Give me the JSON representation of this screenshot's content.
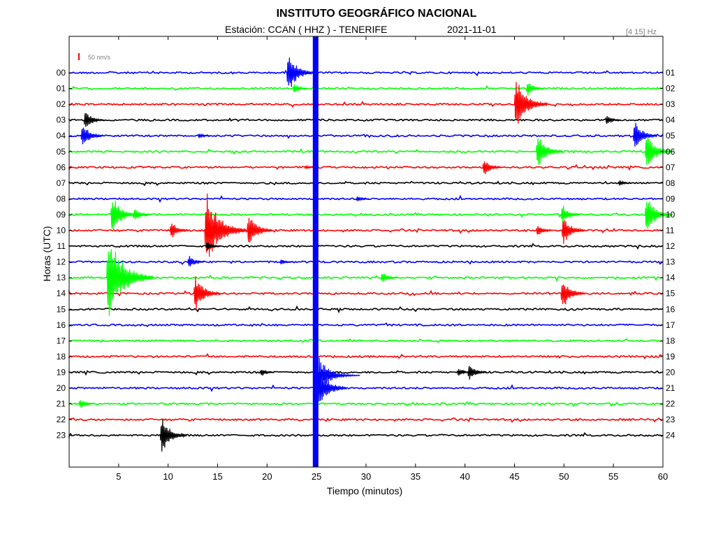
{
  "header": {
    "title": "INSTITUTO GEOGRÁFICO NACIONAL",
    "station_line": "Estación:  CCAN ( HHZ ) - TENERIFE",
    "date": "2021-11-01",
    "filter": "[4 15] Hz"
  },
  "chart_data": {
    "type": "line",
    "title": "INSTITUTO GEOGRÁFICO NACIONAL",
    "subtitle": "Estación:  CCAN ( HHZ ) - TENERIFE",
    "xlabel": "Tiempo (minutos)",
    "ylabel": "Horas (UTC)",
    "xlim": [
      0,
      60
    ],
    "x_ticks": [
      5,
      10,
      15,
      20,
      25,
      30,
      35,
      40,
      45,
      50,
      55,
      60
    ],
    "left_labels": [
      "00",
      "01",
      "02",
      "03",
      "04",
      "05",
      "06",
      "07",
      "08",
      "09",
      "10",
      "11",
      "12",
      "13",
      "14",
      "15",
      "16",
      "17",
      "18",
      "19",
      "20",
      "21",
      "22",
      "23"
    ],
    "right_labels": [
      "01",
      "02",
      "03",
      "04",
      "05",
      "06",
      "07",
      "08",
      "09",
      "10",
      "11",
      "12",
      "13",
      "14",
      "15",
      "16",
      "17",
      "18",
      "19",
      "20",
      "21",
      "22",
      "23",
      "24"
    ],
    "trace_colors": [
      "#0000ff",
      "#00ff00",
      "#ff0000",
      "#000000"
    ],
    "scale_label": "50 nm/s",
    "events": [
      {
        "hour": 0,
        "minute": 22.0,
        "amplitude": 1.6
      },
      {
        "hour": 1,
        "minute": 22.6,
        "amplitude": 0.5
      },
      {
        "hour": 1,
        "minute": 46.2,
        "amplitude": 0.7
      },
      {
        "hour": 2,
        "minute": 45.0,
        "amplitude": 2.1
      },
      {
        "hour": 3,
        "minute": 1.5,
        "amplitude": 0.9
      },
      {
        "hour": 3,
        "minute": 54.2,
        "amplitude": 0.5
      },
      {
        "hour": 4,
        "minute": 1.2,
        "amplitude": 1.1
      },
      {
        "hour": 4,
        "minute": 13.0,
        "amplitude": 0.3
      },
      {
        "hour": 4,
        "minute": 57.0,
        "amplitude": 1.3
      },
      {
        "hour": 5,
        "minute": 47.2,
        "amplitude": 1.5
      },
      {
        "hour": 5,
        "minute": 58.2,
        "amplitude": 1.6
      },
      {
        "hour": 6,
        "minute": 41.8,
        "amplitude": 0.8
      },
      {
        "hour": 6,
        "minute": 23.8,
        "amplitude": 0.2
      },
      {
        "hour": 7,
        "minute": 55.5,
        "amplitude": 0.3
      },
      {
        "hour": 8,
        "minute": 29.0,
        "amplitude": 0.3
      },
      {
        "hour": 9,
        "minute": 4.2,
        "amplitude": 1.6
      },
      {
        "hour": 9,
        "minute": 6.5,
        "amplitude": 0.7
      },
      {
        "hour": 9,
        "minute": 58.2,
        "amplitude": 1.6
      },
      {
        "hour": 9,
        "minute": 49.7,
        "amplitude": 0.9
      },
      {
        "hour": 10,
        "minute": 10.2,
        "amplitude": 0.8
      },
      {
        "hour": 10,
        "minute": 13.7,
        "amplitude": 2.9
      },
      {
        "hour": 10,
        "minute": 18.0,
        "amplitude": 1.4
      },
      {
        "hour": 10,
        "minute": 49.8,
        "amplitude": 1.2
      },
      {
        "hour": 10,
        "minute": 47.2,
        "amplitude": 0.6
      },
      {
        "hour": 11,
        "minute": 13.8,
        "amplitude": 0.5
      },
      {
        "hour": 12,
        "minute": 12.0,
        "amplitude": 0.6
      },
      {
        "hour": 12,
        "minute": 21.3,
        "amplitude": 0.3
      },
      {
        "hour": 13,
        "minute": 3.8,
        "amplitude": 3.3
      },
      {
        "hour": 13,
        "minute": 31.5,
        "amplitude": 0.6
      },
      {
        "hour": 14,
        "minute": 12.6,
        "amplitude": 1.5
      },
      {
        "hour": 14,
        "minute": 49.7,
        "amplitude": 1.3
      },
      {
        "hour": 19,
        "minute": 19.3,
        "amplitude": 0.4
      },
      {
        "hour": 19,
        "minute": 40.3,
        "amplitude": 0.8
      },
      {
        "hour": 19,
        "minute": 39.2,
        "amplitude": 0.4
      },
      {
        "hour": 20,
        "minute": 24.8,
        "amplitude": 2.0
      },
      {
        "hour": 21,
        "minute": 1.0,
        "amplitude": 0.5
      },
      {
        "hour": 23,
        "minute": 9.2,
        "amplitude": 1.5
      }
    ],
    "saturated_trace": {
      "hour_from": 0,
      "hour_to": 23,
      "minute": 24.9
    }
  }
}
